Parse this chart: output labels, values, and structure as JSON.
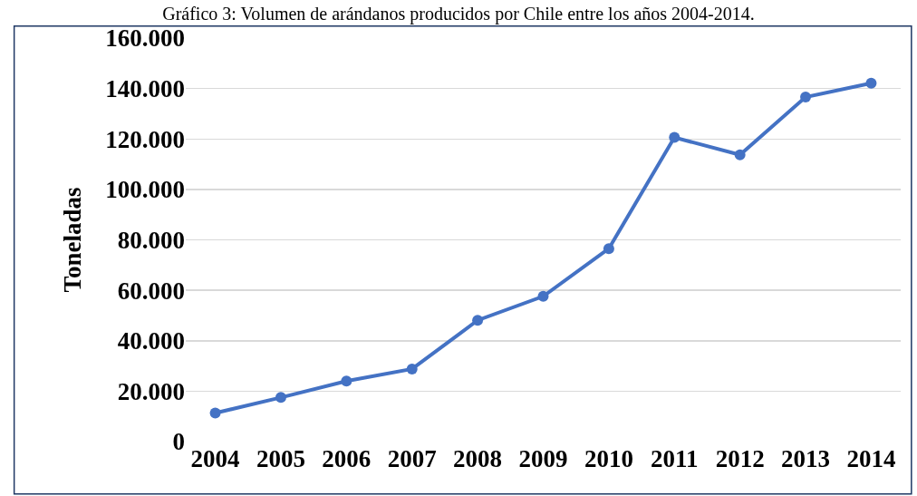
{
  "chart_data": {
    "type": "line",
    "title": "Gráfico 3: Volumen de arándanos producidos por Chile entre los años 2004-2014.",
    "ylabel": "Toneladas",
    "categories": [
      "2004",
      "2005",
      "2006",
      "2007",
      "2008",
      "2009",
      "2010",
      "2011",
      "2012",
      "2013",
      "2014"
    ],
    "series": [
      {
        "color": "#4472c4",
        "values": [
          11300,
          17500,
          24000,
          28800,
          48100,
          57600,
          76500,
          120600,
          113700,
          136600,
          142100
        ]
      }
    ],
    "ylim": [
      0,
      160000
    ],
    "yticks": [
      {
        "value": 0,
        "label": "0"
      },
      {
        "value": 20000,
        "label": "20.000"
      },
      {
        "value": 40000,
        "label": "40.000"
      },
      {
        "value": 60000,
        "label": "60.000"
      },
      {
        "value": 80000,
        "label": "80.000"
      },
      {
        "value": 100000,
        "label": "100.000"
      },
      {
        "value": 120000,
        "label": "120.000"
      },
      {
        "value": 140000,
        "label": "140.000"
      },
      {
        "value": 160000,
        "label": "160.000"
      }
    ],
    "grid": "y",
    "marker": "circle",
    "line_style": "solid"
  }
}
